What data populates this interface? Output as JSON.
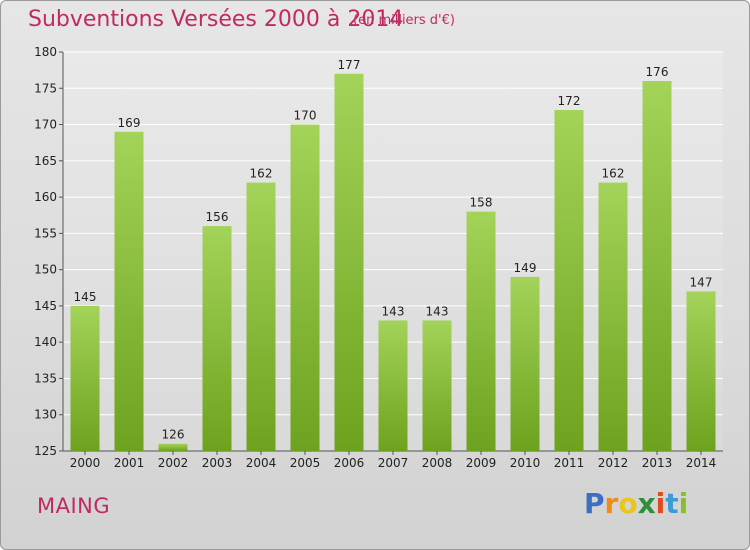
{
  "header": {
    "title": "Subventions Versées 2000 à 2014",
    "subtitle": "(en milliers d'€)"
  },
  "footer": {
    "commune": "MAING",
    "logo_letters": [
      "P",
      "r",
      "o",
      "x",
      "i",
      "t",
      "i"
    ],
    "logo_colors": [
      "#3b6fc4",
      "#f08a1c",
      "#e8c61a",
      "#2d8f3a",
      "#e04a1c",
      "#3b9bd6",
      "#8bbf2a"
    ]
  },
  "colors": {
    "bar_light": "#a3d359",
    "bar_dark": "#6ea21e",
    "accent": "#c02a63"
  },
  "chart_data": {
    "type": "bar",
    "categories": [
      "2000",
      "2001",
      "2002",
      "2003",
      "2004",
      "2005",
      "2006",
      "2007",
      "2008",
      "2009",
      "2010",
      "2011",
      "2012",
      "2013",
      "2014"
    ],
    "values": [
      145,
      169,
      126,
      156,
      162,
      170,
      177,
      143,
      143,
      158,
      149,
      172,
      162,
      176,
      147
    ],
    "ylim": [
      125,
      180
    ],
    "yticks": [
      125,
      130,
      135,
      140,
      145,
      150,
      155,
      160,
      165,
      170,
      175,
      180
    ],
    "grid": true,
    "legend": "none"
  }
}
